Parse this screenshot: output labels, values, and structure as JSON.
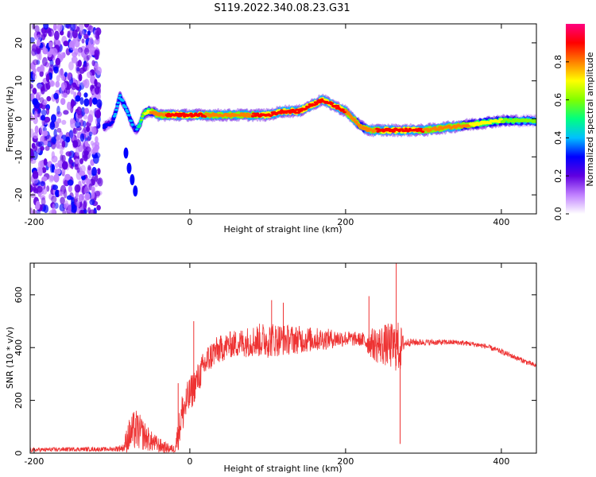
{
  "title": "S119.2022.340.08.23.G31",
  "chart_data": [
    {
      "type": "heatmap",
      "xlabel": "Height of straight line (km)",
      "ylabel": "Frequency (Hz)",
      "xlim": [
        -205,
        445
      ],
      "ylim": [
        -25,
        25
      ],
      "x_ticks": [
        -200,
        0,
        200,
        400
      ],
      "y_ticks": [
        -20,
        -10,
        0,
        10,
        20
      ],
      "colorbar": {
        "label": "Normalized spectral amplitude",
        "range": [
          0,
          1
        ],
        "ticks": [
          "0.0",
          "0.2",
          "0.4",
          "0.6",
          "0.8"
        ],
        "colors": [
          "#ffffff",
          "#c080ff",
          "#6000e0",
          "#0000ff",
          "#00c0ff",
          "#00ff80",
          "#80ff00",
          "#ffff00",
          "#ff8000",
          "#ff0000",
          "#ff0080"
        ]
      },
      "ridge": {
        "x": [
          -110,
          -100,
          -95,
          -90,
          -85,
          -80,
          -75,
          -70,
          -65,
          -60,
          -55,
          -50,
          -40,
          -30,
          -20,
          -10,
          0,
          10,
          20,
          40,
          60,
          80,
          100,
          120,
          140,
          150,
          160,
          170,
          180,
          190,
          200,
          210,
          220,
          230,
          240,
          260,
          280,
          300,
          320,
          340,
          360,
          380,
          400,
          420,
          445
        ],
        "y": [
          -2,
          -1,
          2,
          6,
          4,
          2,
          -1,
          -3,
          -2,
          1,
          2,
          2,
          1,
          1,
          1,
          1,
          1,
          1,
          1,
          1,
          1,
          1,
          1,
          2,
          2,
          3,
          4,
          5,
          4,
          3,
          2,
          0,
          -2,
          -3,
          -3,
          -3,
          -3,
          -3,
          -2.5,
          -2,
          -1.5,
          -1,
          -0.5,
          -0.5,
          -0.5
        ],
        "peak_amplitude": [
          0.35,
          0.3,
          0.4,
          0.35,
          0.4,
          0.35,
          0.4,
          0.3,
          0.5,
          0.6,
          0.7,
          0.75,
          0.8,
          0.85,
          0.9,
          0.9,
          0.9,
          0.9,
          0.85,
          0.85,
          0.85,
          0.85,
          0.9,
          0.9,
          0.9,
          0.9,
          0.95,
          0.95,
          0.9,
          0.9,
          0.85,
          0.8,
          0.75,
          0.8,
          0.85,
          0.9,
          0.9,
          0.85,
          0.8,
          0.8,
          0.75,
          0.7,
          0.65,
          0.6,
          0.6
        ]
      },
      "branch": {
        "x": [
          -82,
          -78,
          -74,
          -70
        ],
        "y": [
          -9,
          -13,
          -16,
          -19
        ]
      },
      "noise_region": {
        "x_range": [
          -205,
          -115
        ],
        "y_range": [
          -25,
          25
        ],
        "amplitude": 0.25
      }
    },
    {
      "type": "line",
      "xlabel": "Height of straight line (km)",
      "ylabel": "SNR (10 * v/v)",
      "xlim": [
        -205,
        445
      ],
      "ylim": [
        0,
        720
      ],
      "x_ticks": [
        -200,
        0,
        200,
        400
      ],
      "y_ticks": [
        0,
        200,
        400,
        600
      ],
      "color": "#ee3333",
      "envelope": {
        "x": [
          -205,
          -150,
          -100,
          -85,
          -80,
          -70,
          -60,
          -50,
          -40,
          -30,
          -20,
          -15,
          -10,
          0,
          10,
          20,
          30,
          50,
          80,
          100,
          120,
          150,
          200,
          220,
          230,
          240,
          250,
          260,
          270,
          275,
          280,
          300,
          340,
          360,
          380,
          400,
          420,
          445
        ],
        "mean": [
          12,
          15,
          15,
          20,
          60,
          90,
          70,
          45,
          30,
          20,
          15,
          70,
          150,
          220,
          280,
          340,
          380,
          410,
          425,
          430,
          430,
          430,
          435,
          430,
          420,
          410,
          410,
          405,
          400,
          415,
          420,
          420,
          420,
          415,
          405,
          385,
          360,
          330
        ],
        "spread": [
          8,
          8,
          8,
          15,
          60,
          80,
          60,
          40,
          30,
          20,
          15,
          60,
          80,
          70,
          60,
          60,
          55,
          50,
          60,
          70,
          60,
          50,
          30,
          25,
          50,
          70,
          80,
          90,
          100,
          20,
          15,
          12,
          10,
          10,
          10,
          10,
          10,
          10
        ]
      },
      "spikes": [
        {
          "x": -15,
          "y": 265
        },
        {
          "x": 5,
          "y": 500
        },
        {
          "x": 105,
          "y": 580
        },
        {
          "x": 120,
          "y": 570
        },
        {
          "x": 230,
          "y": 595
        },
        {
          "x": 265,
          "y": 720
        },
        {
          "x": 270,
          "y": 35
        }
      ]
    }
  ]
}
